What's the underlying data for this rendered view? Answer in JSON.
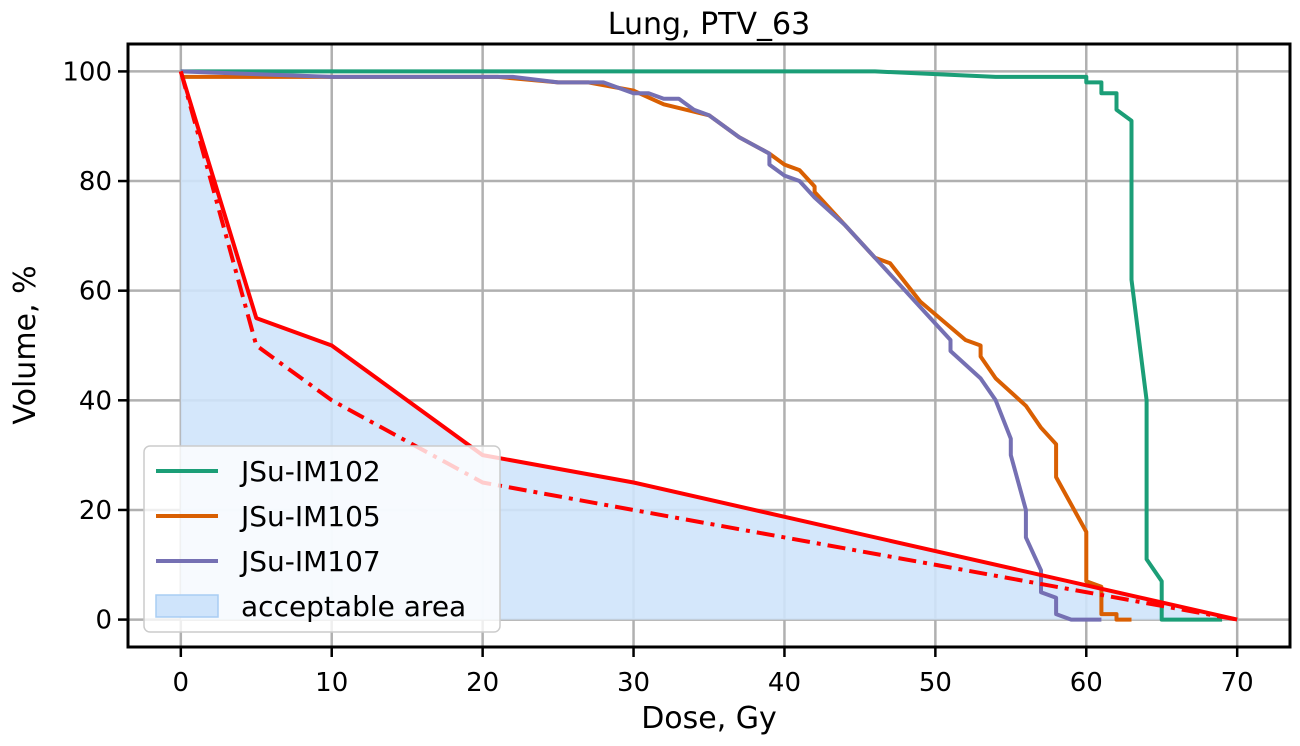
{
  "chart_data": {
    "type": "line",
    "title": "Lung, PTV_63",
    "xlabel": "Dose, Gy",
    "ylabel": "Volume, %",
    "xlim": [
      -3.5,
      73.5
    ],
    "ylim": [
      -5,
      105
    ],
    "xticks": [
      0,
      10,
      20,
      30,
      40,
      50,
      60,
      70
    ],
    "yticks": [
      0,
      20,
      40,
      60,
      80,
      100
    ],
    "grid": true,
    "legend_position": "lower-left",
    "series": [
      {
        "name": "JSu-IM102",
        "color": "#1b9e77",
        "x": [
          0,
          46,
          54,
          60,
          60,
          61,
          61,
          62,
          62,
          63,
          63,
          64,
          64,
          65,
          65,
          69
        ],
        "y": [
          100,
          100,
          99,
          99,
          98,
          98,
          96,
          96,
          93,
          91,
          62,
          40,
          11,
          7,
          0,
          0
        ]
      },
      {
        "name": "JSu-IM105",
        "color": "#d95f02",
        "x": [
          0,
          21,
          25,
          27,
          30,
          32,
          35,
          37,
          39,
          40,
          41,
          42,
          42,
          44,
          46,
          47,
          49,
          52,
          53,
          53,
          54,
          56,
          57,
          58,
          58,
          60,
          60,
          61,
          61,
          62,
          62,
          63
        ],
        "y": [
          99,
          99,
          98,
          98,
          96.5,
          94,
          92,
          88,
          85,
          83,
          82,
          79,
          78,
          72,
          66,
          65,
          58,
          51,
          50,
          48,
          44,
          39,
          35,
          32,
          26,
          16,
          7,
          6,
          1,
          1,
          0,
          0
        ]
      },
      {
        "name": "JSu-IM107",
        "color": "#7570b3",
        "x": [
          0,
          10,
          22,
          25,
          28,
          30,
          31,
          32,
          33,
          34,
          35,
          37,
          39,
          39,
          40,
          41,
          42,
          44,
          46,
          48,
          50,
          51,
          51,
          53,
          54,
          55,
          55,
          56,
          56,
          57,
          57,
          58,
          58,
          59,
          61
        ],
        "y": [
          100,
          99,
          99,
          98,
          98,
          96,
          96,
          95,
          95,
          93,
          92,
          88,
          85,
          83,
          81,
          80,
          77,
          72,
          66,
          60,
          54,
          51,
          49,
          44,
          40,
          33,
          30,
          20,
          15,
          9,
          5,
          4,
          1,
          0,
          0
        ]
      },
      {
        "name": "",
        "color": "#ff0000",
        "style": "solid",
        "x": [
          0,
          5,
          10,
          20,
          30,
          70
        ],
        "y": [
          100,
          55,
          50,
          30,
          25,
          0
        ]
      },
      {
        "name": "",
        "color": "#ff0000",
        "style": "dashdot",
        "x": [
          0,
          5,
          10,
          20,
          30,
          70
        ],
        "y": [
          100,
          50,
          40,
          25,
          20,
          0
        ]
      },
      {
        "name": "acceptable area",
        "color": "#cfe4fb",
        "type": "area",
        "x": [
          0,
          5,
          10,
          20,
          30,
          70
        ],
        "y": [
          100,
          55,
          50,
          30,
          25,
          0
        ]
      }
    ]
  }
}
